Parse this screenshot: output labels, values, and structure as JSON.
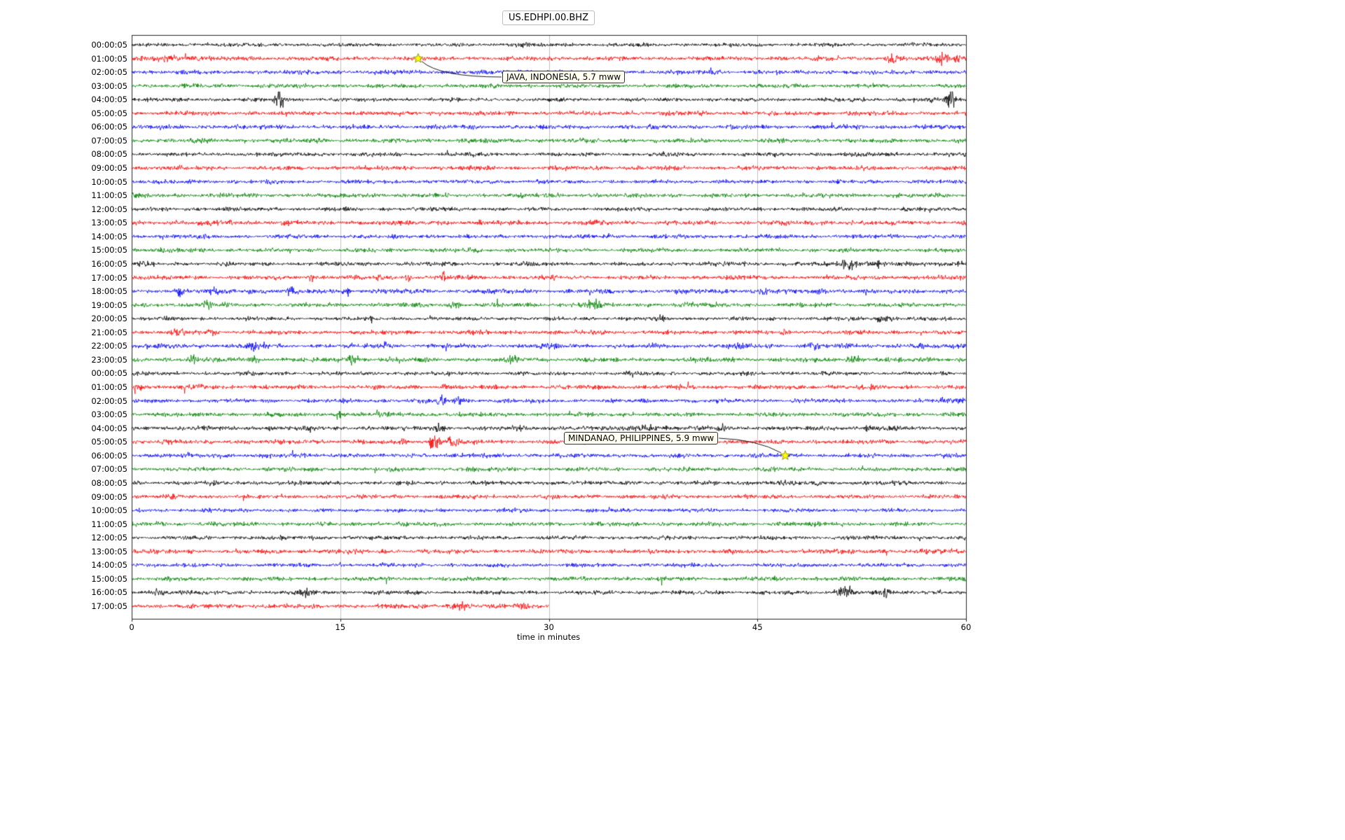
{
  "title": "US.EDHPI.00.BHZ",
  "chart_data": {
    "type": "line",
    "subtype": "seismogram-dayplot",
    "station_id": "US.EDHPI.00.BHZ",
    "xlabel": "time in minutes",
    "x_ticks": [
      0,
      15,
      30,
      45,
      60
    ],
    "x_range": [
      0,
      60
    ],
    "grid_minutes": [
      15,
      30,
      45
    ],
    "grid_on": true,
    "trace_color_cycle": [
      "#000000",
      "#ff0000",
      "#0000ff",
      "#008000"
    ],
    "event_marker_color": "#ffff00",
    "traces": [
      {
        "label": "00:00:05",
        "color": "#000000",
        "duration_minutes": 60,
        "base_amp": 0.85,
        "bursts": [
          {
            "minute": 27.8,
            "amp": 0.9,
            "width": 0.5
          },
          {
            "minute": 36.9,
            "amp": 0.5,
            "width": 0.3
          }
        ]
      },
      {
        "label": "01:00:05",
        "color": "#ff0000",
        "duration_minutes": 60,
        "base_amp": 1.0,
        "bursts": [
          {
            "minute": 2.5,
            "amp": 1.0,
            "width": 1.2
          },
          {
            "minute": 4.6,
            "amp": 1.1,
            "width": 0.4
          },
          {
            "minute": 54.7,
            "amp": 3.2,
            "width": 0.3
          },
          {
            "minute": 58.3,
            "amp": 3.0,
            "width": 0.4
          },
          {
            "minute": 59.3,
            "amp": 2.4,
            "width": 0.3
          }
        ]
      },
      {
        "label": "02:00:05",
        "color": "#0000ff",
        "duration_minutes": 60,
        "base_amp": 1.0,
        "bursts": [
          {
            "minute": 30.0,
            "amp": 0.4,
            "width": 2.0
          }
        ]
      },
      {
        "label": "03:00:05",
        "color": "#008000",
        "duration_minutes": 60,
        "base_amp": 0.95,
        "bursts": []
      },
      {
        "label": "04:00:05",
        "color": "#000000",
        "duration_minutes": 60,
        "base_amp": 0.9,
        "bursts": [
          {
            "minute": 10.6,
            "amp": 5.5,
            "width": 0.35
          },
          {
            "minute": 57.5,
            "amp": 1.5,
            "width": 0.3
          },
          {
            "minute": 58.9,
            "amp": 6.0,
            "width": 0.35
          }
        ]
      },
      {
        "label": "05:00:05",
        "color": "#ff0000",
        "duration_minutes": 60,
        "base_amp": 1.0,
        "bursts": []
      },
      {
        "label": "06:00:05",
        "color": "#0000ff",
        "duration_minutes": 60,
        "base_amp": 1.0,
        "bursts": []
      },
      {
        "label": "07:00:05",
        "color": "#008000",
        "duration_minutes": 60,
        "base_amp": 1.0,
        "bursts": []
      },
      {
        "label": "08:00:05",
        "color": "#000000",
        "duration_minutes": 60,
        "base_amp": 0.9,
        "bursts": []
      },
      {
        "label": "09:00:05",
        "color": "#ff0000",
        "duration_minutes": 60,
        "base_amp": 1.0,
        "bursts": []
      },
      {
        "label": "10:00:05",
        "color": "#0000ff",
        "duration_minutes": 60,
        "base_amp": 0.9,
        "bursts": [
          {
            "minute": 42.5,
            "amp": 0.6,
            "width": 0.4
          }
        ]
      },
      {
        "label": "11:00:05",
        "color": "#008000",
        "duration_minutes": 60,
        "base_amp": 0.95,
        "bursts": [
          {
            "minute": 30.0,
            "amp": 0.5,
            "width": 0.5
          }
        ]
      },
      {
        "label": "12:00:05",
        "color": "#000000",
        "duration_minutes": 60,
        "base_amp": 0.9,
        "bursts": []
      },
      {
        "label": "13:00:05",
        "color": "#ff0000",
        "duration_minutes": 60,
        "base_amp": 1.1,
        "bursts": [
          {
            "minute": 7.0,
            "amp": 0.7,
            "width": 0.3
          },
          {
            "minute": 11.0,
            "amp": 0.7,
            "width": 0.3
          }
        ]
      },
      {
        "label": "14:00:05",
        "color": "#0000ff",
        "duration_minutes": 60,
        "base_amp": 0.95,
        "bursts": []
      },
      {
        "label": "15:00:05",
        "color": "#008000",
        "duration_minutes": 60,
        "base_amp": 0.95,
        "bursts": [
          {
            "minute": 5.0,
            "amp": 0.5,
            "width": 0.4
          }
        ]
      },
      {
        "label": "16:00:05",
        "color": "#000000",
        "duration_minutes": 60,
        "base_amp": 0.95,
        "bursts": [
          {
            "minute": 0.8,
            "amp": 0.8,
            "width": 0.4
          },
          {
            "minute": 51.5,
            "amp": 4.8,
            "width": 0.5
          },
          {
            "minute": 53.6,
            "amp": 1.5,
            "width": 0.8
          },
          {
            "minute": 59.5,
            "amp": 1.2,
            "width": 0.3
          }
        ]
      },
      {
        "label": "17:00:05",
        "color": "#ff0000",
        "duration_minutes": 60,
        "base_amp": 1.0,
        "bursts": [
          {
            "minute": 12.9,
            "amp": 2.2,
            "width": 0.2
          },
          {
            "minute": 17.8,
            "amp": 2.0,
            "width": 0.2
          },
          {
            "minute": 19.9,
            "amp": 1.6,
            "width": 0.2
          },
          {
            "minute": 22.4,
            "amp": 2.0,
            "width": 0.2
          },
          {
            "minute": 30.5,
            "amp": 1.0,
            "width": 0.2
          }
        ]
      },
      {
        "label": "18:00:05",
        "color": "#0000ff",
        "duration_minutes": 60,
        "base_amp": 1.05,
        "bursts": [
          {
            "minute": 3.4,
            "amp": 1.8,
            "width": 0.25
          },
          {
            "minute": 5.9,
            "amp": 2.0,
            "width": 0.25
          },
          {
            "minute": 8.5,
            "amp": 1.6,
            "width": 0.25
          },
          {
            "minute": 11.5,
            "amp": 1.8,
            "width": 0.25
          },
          {
            "minute": 15.5,
            "amp": 1.4,
            "width": 0.25
          },
          {
            "minute": 45.5,
            "amp": 1.2,
            "width": 0.4
          },
          {
            "minute": 49.5,
            "amp": 1.0,
            "width": 0.3
          }
        ]
      },
      {
        "label": "19:00:05",
        "color": "#008000",
        "duration_minutes": 60,
        "base_amp": 1.0,
        "bursts": [
          {
            "minute": 5.4,
            "amp": 1.8,
            "width": 0.3
          },
          {
            "minute": 23.3,
            "amp": 1.2,
            "width": 0.5
          },
          {
            "minute": 33.0,
            "amp": 2.5,
            "width": 0.6
          },
          {
            "minute": 40.0,
            "amp": 0.8,
            "width": 0.4
          }
        ]
      },
      {
        "label": "20:00:05",
        "color": "#000000",
        "duration_minutes": 60,
        "base_amp": 0.85,
        "bursts": [
          {
            "minute": 17.3,
            "amp": 1.2,
            "width": 0.2
          },
          {
            "minute": 38.2,
            "amp": 1.2,
            "width": 0.3
          },
          {
            "minute": 54.0,
            "amp": 1.5,
            "width": 0.6
          }
        ]
      },
      {
        "label": "21:00:05",
        "color": "#ff0000",
        "duration_minutes": 60,
        "base_amp": 1.0,
        "bursts": [
          {
            "minute": 3.5,
            "amp": 1.5,
            "width": 0.4
          },
          {
            "minute": 5.8,
            "amp": 1.5,
            "width": 0.3
          },
          {
            "minute": 34.0,
            "amp": 0.7,
            "width": 0.3
          },
          {
            "minute": 47.0,
            "amp": 1.0,
            "width": 0.3
          }
        ]
      },
      {
        "label": "22:00:05",
        "color": "#0000ff",
        "duration_minutes": 60,
        "base_amp": 1.05,
        "bursts": [
          {
            "minute": 8.8,
            "amp": 2.2,
            "width": 0.4
          },
          {
            "minute": 18.2,
            "amp": 1.2,
            "width": 0.3
          },
          {
            "minute": 30.3,
            "amp": 0.8,
            "width": 0.3
          },
          {
            "minute": 43.8,
            "amp": 1.4,
            "width": 0.4
          },
          {
            "minute": 49.0,
            "amp": 1.2,
            "width": 0.4
          },
          {
            "minute": 55.0,
            "amp": 0.8,
            "width": 0.3
          }
        ]
      },
      {
        "label": "23:00:05",
        "color": "#008000",
        "duration_minutes": 60,
        "base_amp": 1.05,
        "bursts": [
          {
            "minute": 4.4,
            "amp": 1.6,
            "width": 0.4
          },
          {
            "minute": 8.9,
            "amp": 2.6,
            "width": 0.25
          },
          {
            "minute": 15.7,
            "amp": 1.4,
            "width": 0.6
          },
          {
            "minute": 27.4,
            "amp": 1.4,
            "width": 0.5
          },
          {
            "minute": 52.0,
            "amp": 1.2,
            "width": 0.8
          }
        ]
      },
      {
        "label": "00:00:05",
        "color": "#000000",
        "duration_minutes": 60,
        "base_amp": 0.9,
        "bursts": [
          {
            "minute": 36.0,
            "amp": 0.6,
            "width": 0.4
          }
        ]
      },
      {
        "label": "01:00:05",
        "color": "#ff0000",
        "duration_minutes": 60,
        "base_amp": 1.0,
        "bursts": [
          {
            "minute": 0.5,
            "amp": 1.8,
            "width": 0.3
          },
          {
            "minute": 4.8,
            "amp": 1.8,
            "width": 0.25
          },
          {
            "minute": 22.5,
            "amp": 0.8,
            "width": 0.3
          }
        ]
      },
      {
        "label": "02:00:05",
        "color": "#0000ff",
        "duration_minutes": 60,
        "base_amp": 0.95,
        "bursts": [
          {
            "minute": 22.3,
            "amp": 2.5,
            "width": 0.3
          },
          {
            "minute": 23.6,
            "amp": 2.0,
            "width": 0.3
          },
          {
            "minute": 58.5,
            "amp": 2.2,
            "width": 0.35
          },
          {
            "minute": 59.6,
            "amp": 1.8,
            "width": 0.3
          }
        ]
      },
      {
        "label": "03:00:05",
        "color": "#008000",
        "duration_minutes": 60,
        "base_amp": 0.95,
        "bursts": [
          {
            "minute": 14.9,
            "amp": 2.4,
            "width": 0.3
          },
          {
            "minute": 17.6,
            "amp": 2.0,
            "width": 0.2
          }
        ]
      },
      {
        "label": "04:00:05",
        "color": "#000000",
        "duration_minutes": 60,
        "base_amp": 1.0,
        "bursts": [
          {
            "minute": 10.0,
            "amp": 1.0,
            "width": 0.3
          },
          {
            "minute": 22.2,
            "amp": 1.6,
            "width": 0.4
          },
          {
            "minute": 28.0,
            "amp": 0.8,
            "width": 0.4
          },
          {
            "minute": 37.0,
            "amp": 1.0,
            "width": 1.2
          },
          {
            "minute": 42.5,
            "amp": 1.4,
            "width": 0.4
          },
          {
            "minute": 50.5,
            "amp": 0.9,
            "width": 0.5
          },
          {
            "minute": 53.0,
            "amp": 0.9,
            "width": 0.4
          }
        ]
      },
      {
        "label": "05:00:05",
        "color": "#ff0000",
        "duration_minutes": 60,
        "base_amp": 1.0,
        "bursts": [
          {
            "minute": 19.5,
            "amp": 1.2,
            "width": 0.3
          },
          {
            "minute": 21.8,
            "amp": 5.5,
            "width": 0.3
          },
          {
            "minute": 23.1,
            "amp": 2.8,
            "width": 0.4
          }
        ]
      },
      {
        "label": "06:00:05",
        "color": "#0000ff",
        "duration_minutes": 60,
        "base_amp": 1.0,
        "bursts": [
          {
            "minute": 11.5,
            "amp": 1.0,
            "width": 0.4
          }
        ]
      },
      {
        "label": "07:00:05",
        "color": "#008000",
        "duration_minutes": 60,
        "base_amp": 0.95,
        "bursts": []
      },
      {
        "label": "08:00:05",
        "color": "#000000",
        "duration_minutes": 60,
        "base_amp": 1.0,
        "bursts": []
      },
      {
        "label": "09:00:05",
        "color": "#ff0000",
        "duration_minutes": 60,
        "base_amp": 0.95,
        "bursts": []
      },
      {
        "label": "10:00:05",
        "color": "#0000ff",
        "duration_minutes": 60,
        "base_amp": 0.9,
        "bursts": []
      },
      {
        "label": "11:00:05",
        "color": "#008000",
        "duration_minutes": 60,
        "base_amp": 0.95,
        "bursts": [
          {
            "minute": 2.0,
            "amp": 0.6,
            "width": 0.5
          }
        ]
      },
      {
        "label": "12:00:05",
        "color": "#000000",
        "duration_minutes": 60,
        "base_amp": 0.9,
        "bursts": []
      },
      {
        "label": "13:00:05",
        "color": "#ff0000",
        "duration_minutes": 60,
        "base_amp": 1.05,
        "bursts": []
      },
      {
        "label": "14:00:05",
        "color": "#0000ff",
        "duration_minutes": 60,
        "base_amp": 0.95,
        "bursts": []
      },
      {
        "label": "15:00:05",
        "color": "#008000",
        "duration_minutes": 60,
        "base_amp": 0.95,
        "bursts": []
      },
      {
        "label": "16:00:05",
        "color": "#000000",
        "duration_minutes": 60,
        "base_amp": 0.95,
        "bursts": [
          {
            "minute": 2.0,
            "amp": 1.4,
            "width": 0.5
          },
          {
            "minute": 12.6,
            "amp": 1.8,
            "width": 0.25
          },
          {
            "minute": 51.3,
            "amp": 4.5,
            "width": 0.5
          },
          {
            "minute": 54.2,
            "amp": 1.4,
            "width": 0.4
          },
          {
            "minute": 58.0,
            "amp": 0.8,
            "width": 0.3
          }
        ]
      },
      {
        "label": "17:00:05",
        "color": "#ff0000",
        "duration_minutes": 30,
        "base_amp": 1.05,
        "bursts": [
          {
            "minute": 23.5,
            "amp": 1.2,
            "width": 0.8
          },
          {
            "minute": 28.0,
            "amp": 0.8,
            "width": 0.5
          }
        ]
      }
    ],
    "events": [
      {
        "label": "JAVA, INDONESIA, 5.7 mww",
        "trace_index": 1,
        "trace_label": "01:00:05",
        "minute": 20.6
      },
      {
        "label": "MINDANAO, PHILIPPINES, 5.9 mww",
        "trace_index": 30,
        "trace_label": "06:00:05",
        "minute": 47.0
      }
    ]
  }
}
